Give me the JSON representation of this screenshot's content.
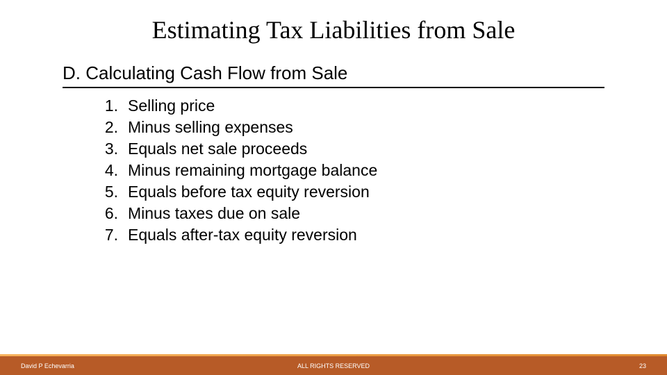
{
  "title": "Estimating Tax Liabilities from Sale",
  "section": {
    "letter": "D.",
    "heading": "Calculating Cash Flow from Sale"
  },
  "items": [
    {
      "n": "1.",
      "text": "Selling price"
    },
    {
      "n": "2.",
      "text": "Minus selling expenses"
    },
    {
      "n": "3.",
      "text": "Equals net sale proceeds"
    },
    {
      "n": "4.",
      "text": "Minus remaining mortgage balance"
    },
    {
      "n": "5.",
      "text": "Equals before tax equity reversion"
    },
    {
      "n": "6.",
      "text": "Minus taxes due on sale"
    },
    {
      "n": "7.",
      "text": "Equals after-tax equity reversion"
    }
  ],
  "footer": {
    "author": "David P Echevarria",
    "rights": "ALL RIGHTS RESERVED",
    "page": "23"
  },
  "colors": {
    "footer_bar": "#b75b27",
    "footer_accent_start": "#f7b25c",
    "footer_accent_end": "#e08a2f",
    "text": "#000000",
    "footer_text": "#ffffff",
    "background": "#ffffff"
  },
  "typography": {
    "title_font": "Times New Roman",
    "body_font": "Arial",
    "title_size_pt": 36,
    "section_size_pt": 26,
    "list_size_pt": 23,
    "footer_size_pt": 9
  }
}
